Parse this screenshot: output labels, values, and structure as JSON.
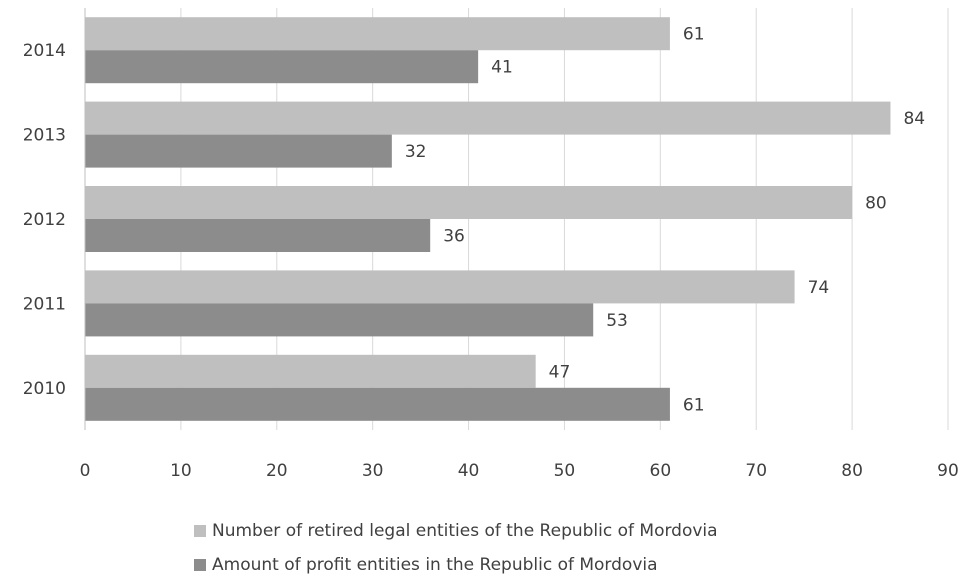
{
  "chart_data": {
    "type": "bar",
    "orientation": "horizontal",
    "categories": [
      "2014",
      "2013",
      "2012",
      "2011",
      "2010"
    ],
    "series": [
      {
        "name": "Number of retired legal entities of the Republic of Mordovia",
        "values": [
          61,
          84,
          80,
          74,
          47
        ],
        "color": "#bfbfbf"
      },
      {
        "name": "Amount of profit entities in the Republic of Mordovia",
        "values": [
          41,
          32,
          36,
          53,
          61
        ],
        "color": "#8c8c8c"
      }
    ],
    "xlim": [
      0,
      90
    ],
    "xticks": [
      "0",
      "10",
      "20",
      "30",
      "40",
      "50",
      "60",
      "70",
      "80",
      "90"
    ],
    "grid": true,
    "legend_position": "bottom"
  }
}
